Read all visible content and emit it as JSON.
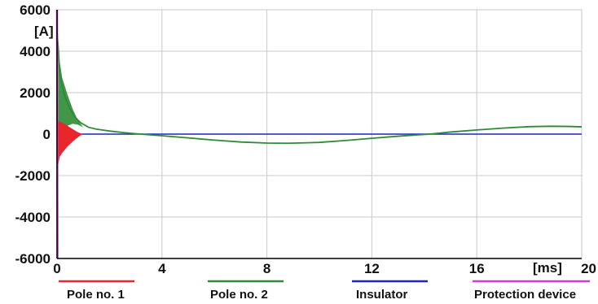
{
  "chart_data": {
    "type": "line",
    "title": "",
    "xlabel": "",
    "ylabel": "",
    "x_unit_label": "[ms]",
    "y_unit_label": "[A]",
    "xlim": [
      0,
      20
    ],
    "ylim": [
      -6000,
      6000
    ],
    "x_ticks": [
      0,
      4,
      8,
      12,
      16,
      20
    ],
    "y_ticks": [
      6000,
      4000,
      2000,
      0,
      -2000,
      -4000,
      -6000
    ],
    "x_tick_labels": [
      "0",
      "4",
      "8",
      "12",
      "16",
      "20"
    ],
    "y_tick_labels": [
      "6000",
      "4000",
      "2000",
      "0",
      "-2000",
      "-4000",
      "-6000"
    ],
    "grid": true,
    "legend_position": "bottom",
    "series": [
      {
        "name": "Pole no. 1",
        "color": "#e8262b",
        "x": [
          0,
          0.05,
          0.1,
          0.2,
          0.3,
          0.4,
          0.5,
          0.6,
          0.7,
          0.8,
          0.9,
          1.0
        ],
        "upper": [
          0,
          650,
          600,
          550,
          480,
          400,
          320,
          240,
          160,
          90,
          40,
          0
        ],
        "lower": [
          0,
          -1450,
          -1100,
          -900,
          -750,
          -600,
          -480,
          -360,
          -250,
          -150,
          -60,
          0
        ]
      },
      {
        "name": "Pole no. 2",
        "color": "#2e8b34",
        "x": [
          0,
          0.05,
          0.1,
          0.2,
          0.3,
          0.5,
          0.7,
          0.9,
          1.2,
          1.5,
          2,
          2.5,
          3,
          3.5,
          4,
          5,
          6,
          7,
          8,
          8.8,
          10,
          11,
          12,
          13,
          14.2,
          15,
          16,
          17,
          18,
          18.8,
          19.5,
          20
        ],
        "values": [
          4900,
          4100,
          3000,
          2300,
          1800,
          1200,
          800,
          550,
          330,
          240,
          150,
          80,
          20,
          -30,
          -80,
          -180,
          -290,
          -380,
          -430,
          -440,
          -400,
          -310,
          -200,
          -100,
          0,
          100,
          200,
          290,
          360,
          380,
          370,
          350
        ],
        "band_x": [
          0.05,
          0.2,
          0.4,
          0.6,
          0.8,
          1.0
        ],
        "band_upper": [
          3900,
          2700,
          1900,
          1200,
          650,
          330
        ],
        "band_lower": [
          -300,
          300,
          400,
          500,
          450,
          330
        ]
      },
      {
        "name": "Insulator",
        "color": "#1f24c4",
        "x": [
          0,
          20
        ],
        "values": [
          0,
          0
        ]
      },
      {
        "name": "Protection device",
        "color": "#d63ad6",
        "x": [
          0,
          0.02
        ],
        "values": [
          6000,
          -6000
        ]
      }
    ]
  }
}
